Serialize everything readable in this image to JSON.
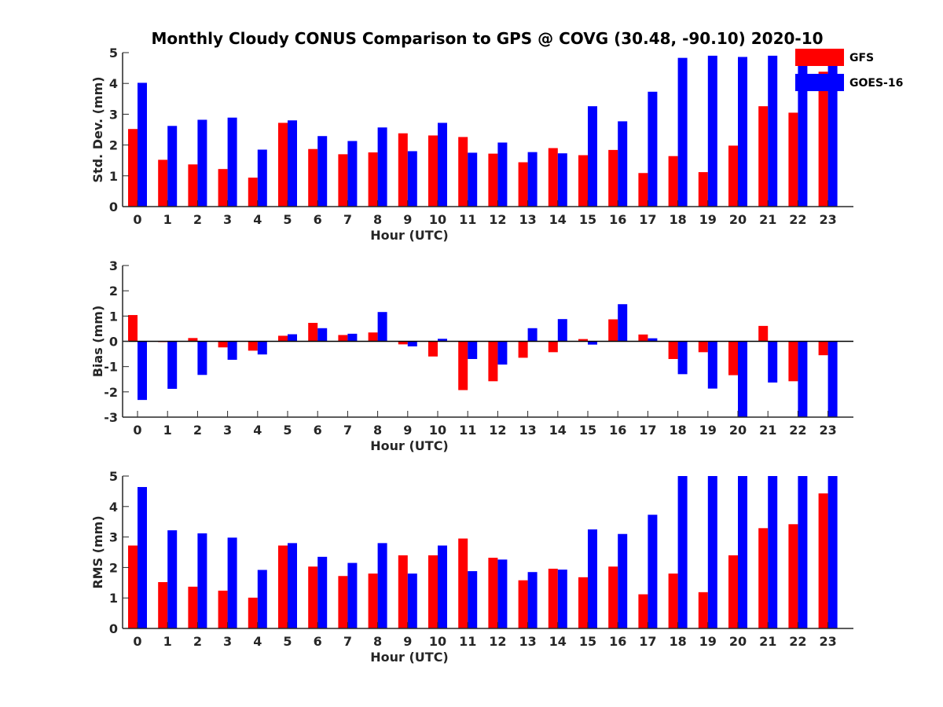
{
  "title": "Monthly Cloudy CONUS Comparison to GPS @ COVG (30.48, -90.10) 2020-10",
  "legend": {
    "placement": "top-right",
    "entries": [
      {
        "name": "GFS",
        "color": "#ff0000"
      },
      {
        "name": "GOES-16",
        "color": "#0000ff"
      }
    ]
  },
  "chart_data": [
    {
      "type": "bar",
      "xlabel": "Hour (UTC)",
      "ylabel": "Std. Dev. (mm)",
      "ylim": [
        0,
        5
      ],
      "yticks": [
        0,
        1,
        2,
        3,
        4,
        5
      ],
      "categories": [
        "0",
        "1",
        "2",
        "3",
        "4",
        "5",
        "6",
        "7",
        "8",
        "9",
        "10",
        "11",
        "12",
        "13",
        "14",
        "15",
        "16",
        "17",
        "18",
        "19",
        "20",
        "21",
        "22",
        "23"
      ],
      "series": [
        {
          "name": "GFS",
          "color": "#ff0000",
          "values": [
            2.52,
            1.52,
            1.37,
            1.22,
            0.94,
            2.72,
            1.87,
            1.7,
            1.76,
            2.38,
            2.31,
            2.26,
            1.72,
            1.44,
            1.9,
            1.67,
            1.84,
            1.09,
            1.64,
            1.12,
            1.98,
            3.26,
            3.05,
            4.38
          ]
        },
        {
          "name": "GOES-16",
          "color": "#0000ff",
          "values": [
            4.02,
            2.62,
            2.82,
            2.89,
            1.85,
            2.8,
            2.29,
            2.13,
            2.57,
            1.8,
            2.72,
            1.75,
            2.08,
            1.77,
            1.73,
            3.26,
            2.77,
            3.73,
            4.83,
            4.9,
            4.86,
            4.9,
            4.98,
            4.98
          ]
        }
      ]
    },
    {
      "type": "bar",
      "xlabel": "Hour (UTC)",
      "ylabel": "Bias (mm)",
      "ylim": [
        -3,
        3
      ],
      "yticks": [
        -3,
        -2,
        -1,
        0,
        1,
        2,
        3
      ],
      "categories": [
        "0",
        "1",
        "2",
        "3",
        "4",
        "5",
        "6",
        "7",
        "8",
        "9",
        "10",
        "11",
        "12",
        "13",
        "14",
        "15",
        "16",
        "17",
        "18",
        "19",
        "20",
        "21",
        "22",
        "23"
      ],
      "series": [
        {
          "name": "GFS",
          "color": "#ff0000",
          "values": [
            1.04,
            -0.03,
            0.13,
            -0.24,
            -0.37,
            0.22,
            0.73,
            0.25,
            0.35,
            -0.12,
            -0.6,
            -1.93,
            -1.58,
            -0.65,
            -0.43,
            0.09,
            0.87,
            0.27,
            -0.7,
            -0.43,
            -1.34,
            0.61,
            -1.58,
            -0.55
          ]
        },
        {
          "name": "GOES-16",
          "color": "#0000ff",
          "values": [
            -2.32,
            -1.88,
            -1.33,
            -0.73,
            -0.52,
            0.28,
            0.52,
            0.3,
            1.16,
            -0.2,
            0.1,
            -0.7,
            -0.92,
            0.52,
            0.88,
            -0.13,
            1.47,
            0.12,
            -1.3,
            -1.87,
            -3.0,
            -1.63,
            -3.0,
            -3.0
          ]
        }
      ]
    },
    {
      "type": "bar",
      "xlabel": "Hour (UTC)",
      "ylabel": "RMS (mm)",
      "ylim": [
        0,
        5
      ],
      "yticks": [
        0,
        1,
        2,
        3,
        4,
        5
      ],
      "categories": [
        "0",
        "1",
        "2",
        "3",
        "4",
        "5",
        "6",
        "7",
        "8",
        "9",
        "10",
        "11",
        "12",
        "13",
        "14",
        "15",
        "16",
        "17",
        "18",
        "19",
        "20",
        "21",
        "22",
        "23"
      ],
      "series": [
        {
          "name": "GFS",
          "color": "#ff0000",
          "values": [
            2.72,
            1.52,
            1.37,
            1.24,
            1.01,
            2.72,
            2.03,
            1.72,
            1.8,
            2.4,
            2.4,
            2.95,
            2.32,
            1.58,
            1.96,
            1.68,
            2.03,
            1.12,
            1.8,
            1.19,
            2.4,
            3.29,
            3.42,
            4.43
          ]
        },
        {
          "name": "GOES-16",
          "color": "#0000ff",
          "values": [
            4.64,
            3.22,
            3.12,
            2.98,
            1.92,
            2.8,
            2.35,
            2.15,
            2.8,
            1.8,
            2.72,
            1.88,
            2.26,
            1.85,
            1.93,
            3.25,
            3.1,
            3.73,
            5.0,
            5.0,
            5.0,
            5.0,
            5.0,
            5.0
          ]
        }
      ]
    }
  ]
}
